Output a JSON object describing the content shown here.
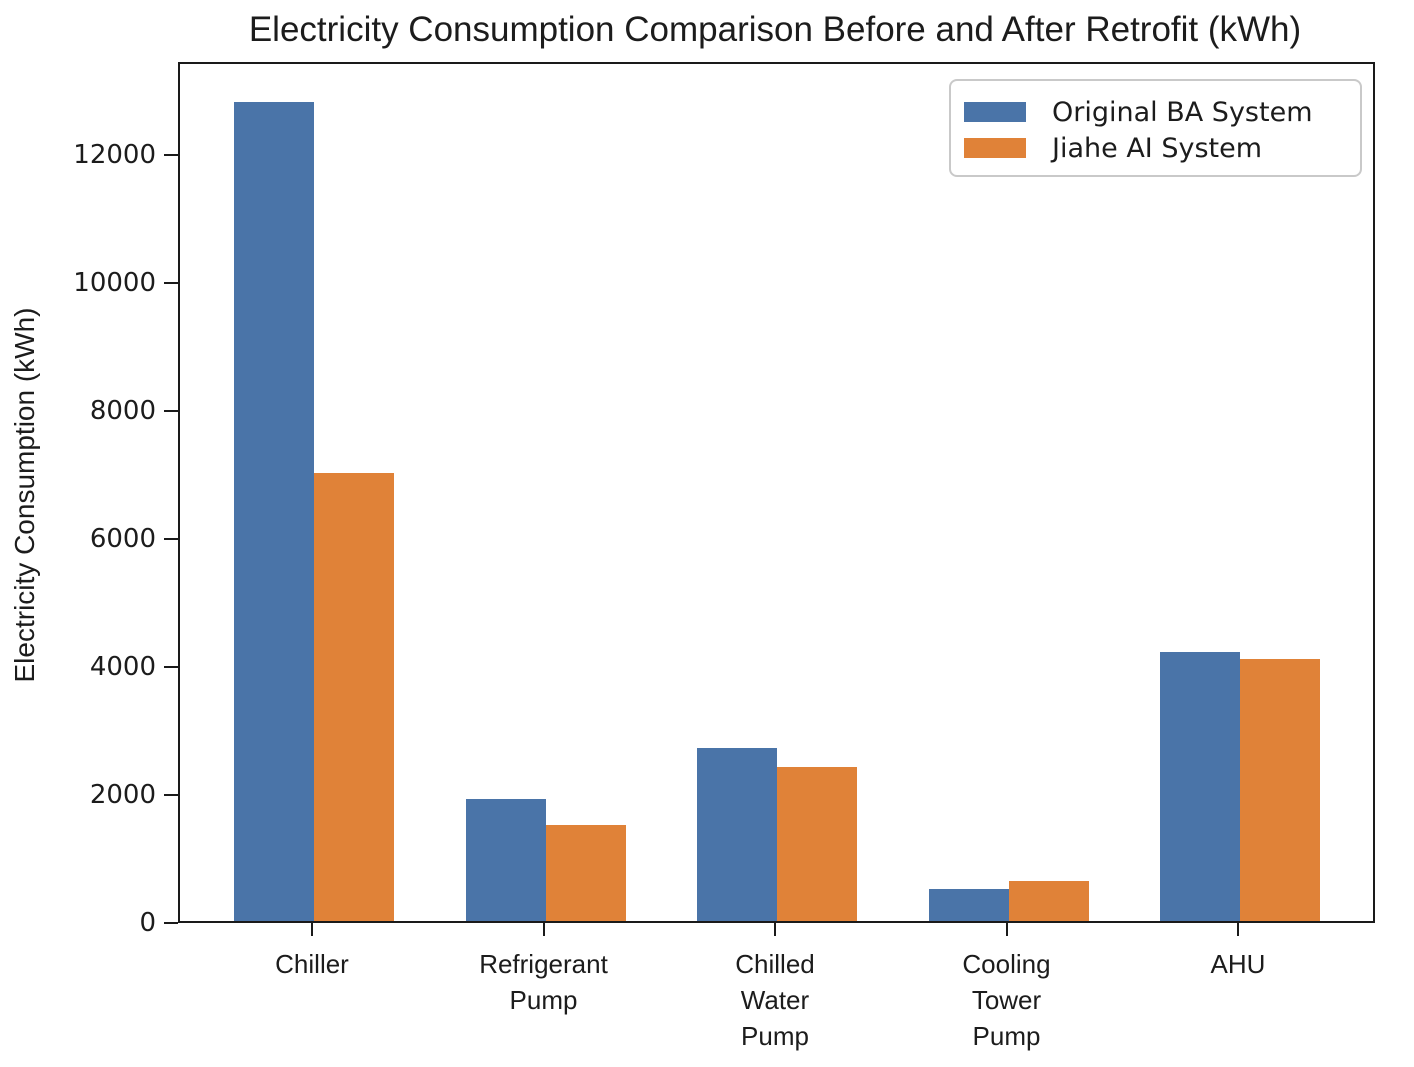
{
  "chart_data": {
    "type": "bar",
    "title": "Electricity Consumption Comparison Before and After Retrofit (kWh)",
    "ylabel": "Electricity Consumption (kWh)",
    "xlabel": "",
    "categories": [
      "Chiller",
      "Refrigerant Pump",
      "Chilled Water Pump",
      "Cooling Tower Pump",
      "AHU"
    ],
    "category_lines": [
      [
        "Chiller"
      ],
      [
        "Refrigerant",
        "Pump"
      ],
      [
        "Chilled",
        "Water",
        "Pump"
      ],
      [
        "Cooling",
        "Tower",
        "Pump"
      ],
      [
        "AHU"
      ]
    ],
    "series": [
      {
        "name": "Original BA System",
        "color": "#4A74A8",
        "values": [
          12800,
          1900,
          2700,
          500,
          4200
        ]
      },
      {
        "name": "Jiahe AI System",
        "color": "#E08238",
        "values": [
          7000,
          1500,
          2400,
          620,
          4100
        ]
      }
    ],
    "ylim": [
      0,
      13450
    ],
    "yticks": [
      0,
      2000,
      4000,
      6000,
      8000,
      10000,
      12000
    ],
    "legend_position": "upper right",
    "grid": false,
    "axis_color": "#1a1a1a"
  }
}
